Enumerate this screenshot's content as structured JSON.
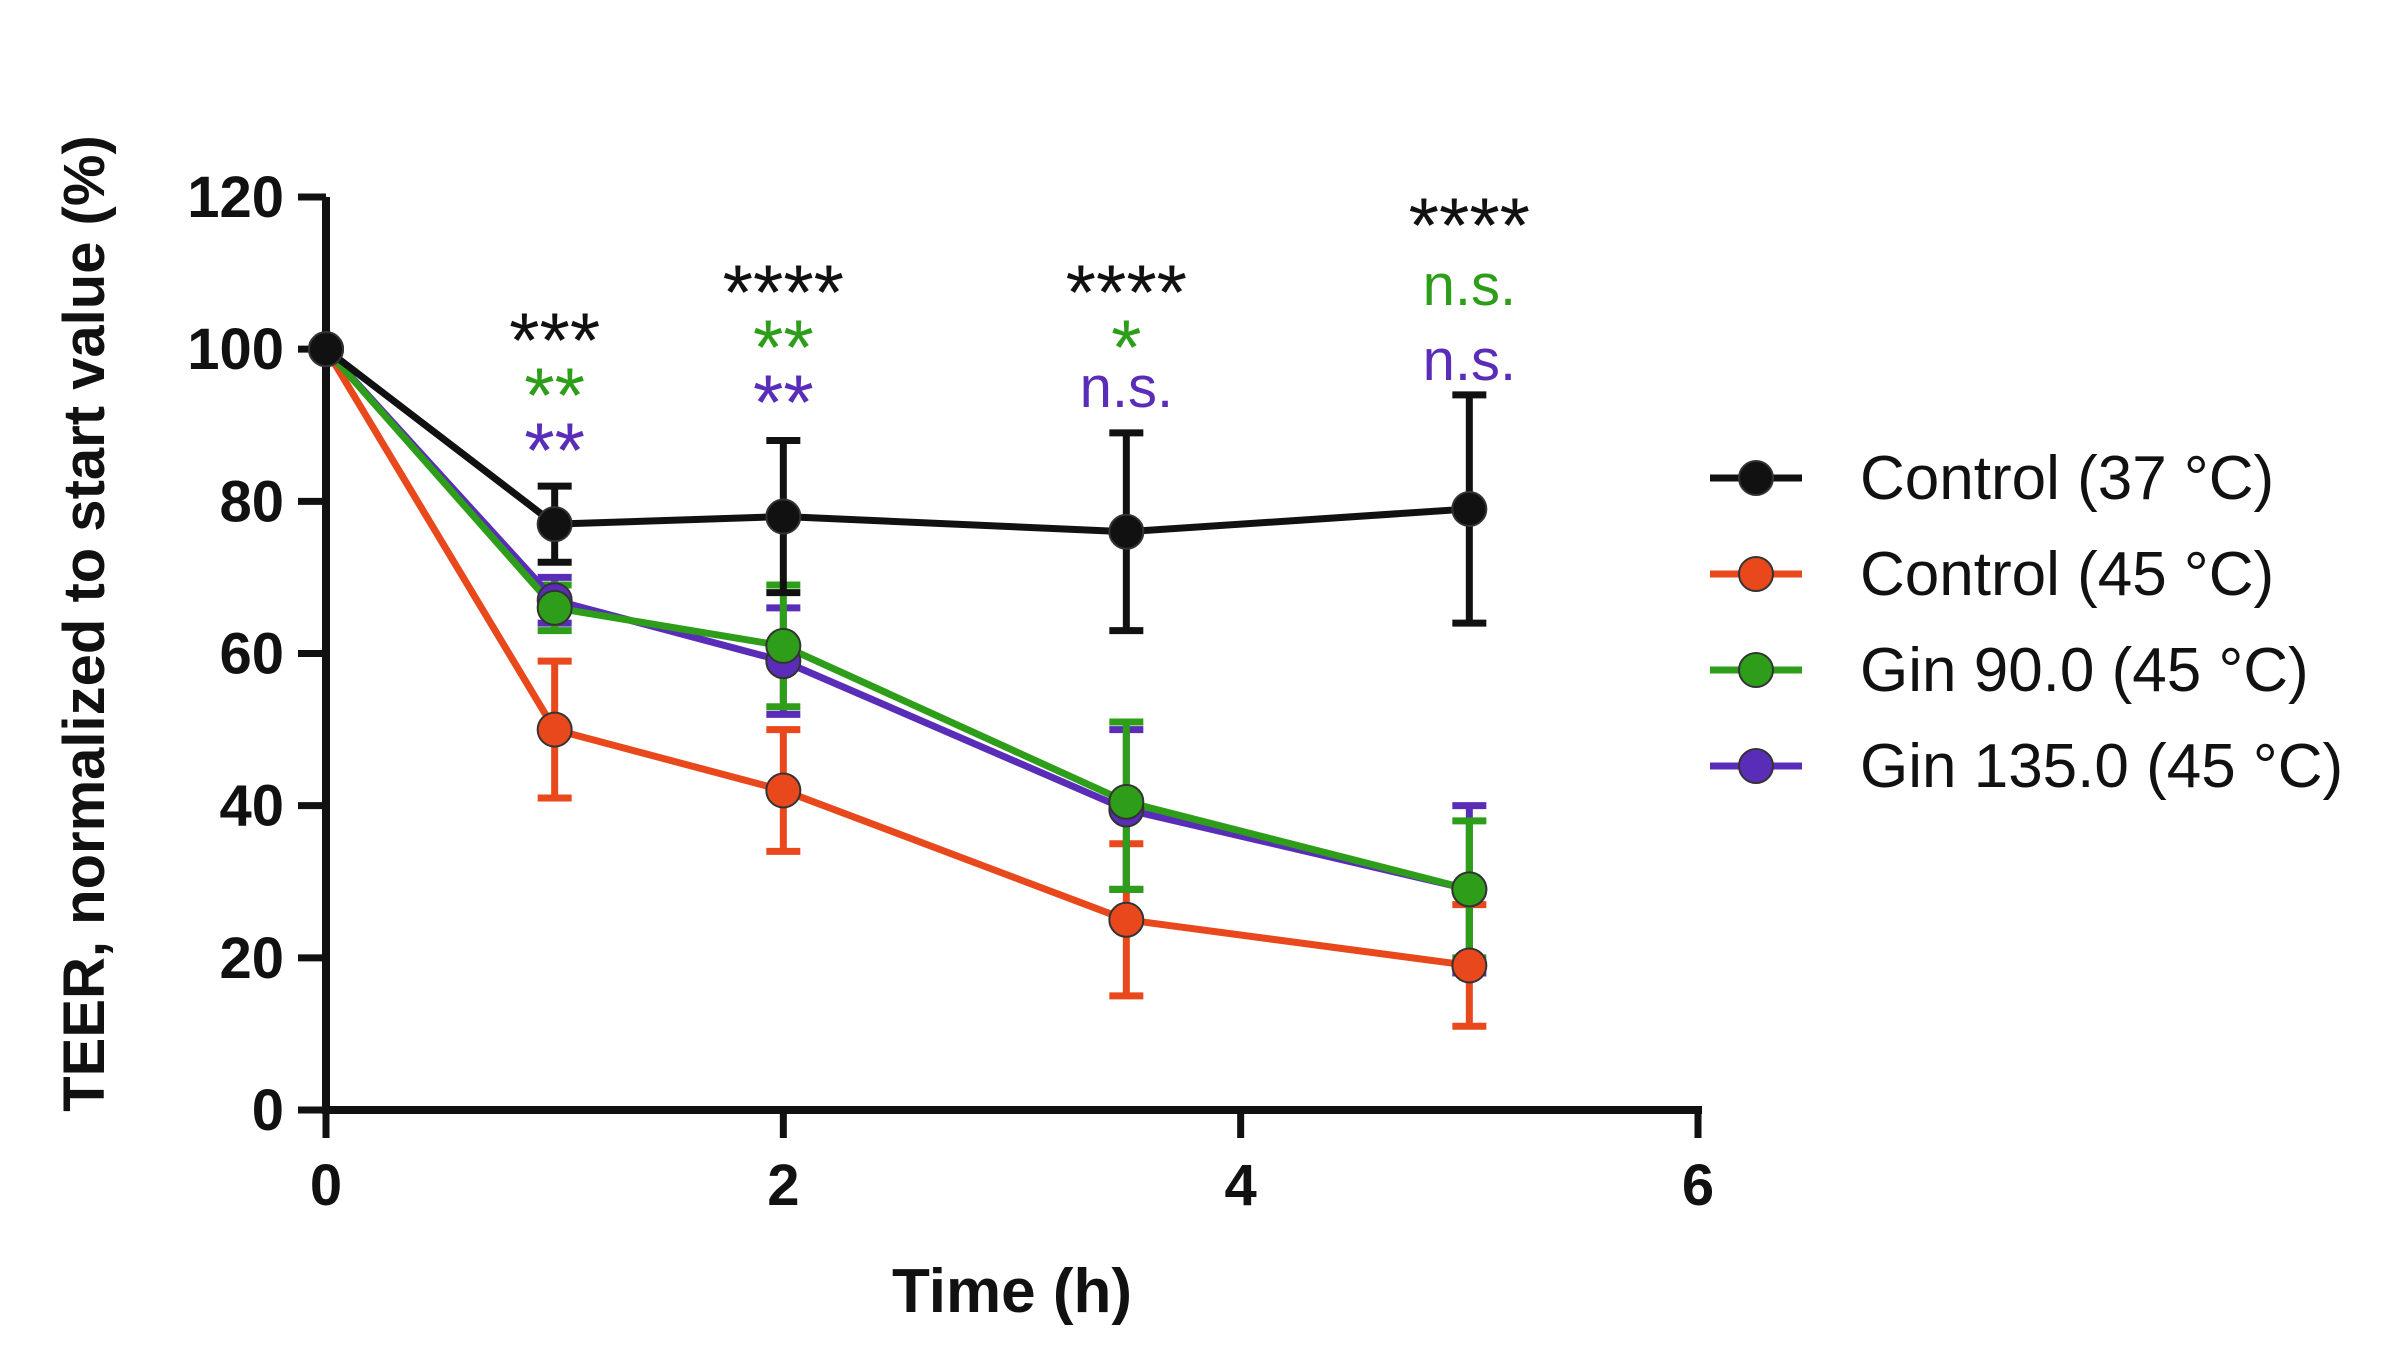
{
  "chart_data": {
    "type": "line",
    "title": "",
    "xlabel": "Time (h)",
    "ylabel": "TEER, normalized to start value (%)",
    "xlim": [
      0,
      6
    ],
    "ylim": [
      0,
      120
    ],
    "xticks": [
      "0",
      "2",
      "4",
      "6"
    ],
    "xtick_values": [
      0,
      2,
      4,
      6
    ],
    "yticks": [
      "0",
      "20",
      "40",
      "60",
      "80",
      "100",
      "120"
    ],
    "ytick_values": [
      0,
      20,
      40,
      60,
      80,
      100,
      120
    ],
    "grid": false,
    "legend_position": "right",
    "series": [
      {
        "name": "Control (37 °C)",
        "color": "#111111",
        "x": [
          0,
          1,
          2,
          3.5,
          5
        ],
        "y": [
          100,
          77,
          78,
          76,
          79
        ],
        "err_hi": [
          null,
          82,
          88,
          89,
          94
        ],
        "err_lo": [
          null,
          72,
          68,
          63,
          64
        ]
      },
      {
        "name": "Control (45 °C)",
        "color": "#e8481c",
        "x": [
          0,
          1,
          2,
          3.5,
          5
        ],
        "y": [
          100,
          50,
          42,
          25,
          19
        ],
        "err_hi": [
          null,
          59,
          50,
          35,
          27
        ],
        "err_lo": [
          null,
          41,
          34,
          15,
          11
        ]
      },
      {
        "name": "Gin 90.0 (45 °C)",
        "color": "#2e9e1a",
        "x": [
          0,
          1,
          2,
          3.5,
          5
        ],
        "y": [
          100,
          66,
          61,
          40.5,
          29
        ],
        "err_hi": [
          null,
          69,
          69,
          51,
          38
        ],
        "err_lo": [
          null,
          63,
          53,
          29,
          20
        ]
      },
      {
        "name": "Gin 135.0 (45 °C)",
        "color": "#5a2db8",
        "x": [
          0,
          1,
          2,
          3.5,
          5
        ],
        "y": [
          100,
          67,
          59,
          39.5,
          29
        ],
        "err_hi": [
          null,
          70,
          66,
          50,
          40
        ],
        "err_lo": [
          null,
          64,
          52,
          29,
          18
        ]
      }
    ],
    "annotations": [
      {
        "x": 1,
        "lines": [
          {
            "text": "***",
            "color": "#111111"
          },
          {
            "text": "**",
            "color": "#2e9e1a"
          },
          {
            "text": "**",
            "color": "#5a2db8"
          }
        ]
      },
      {
        "x": 2,
        "lines": [
          {
            "text": "****",
            "color": "#111111"
          },
          {
            "text": "**",
            "color": "#2e9e1a"
          },
          {
            "text": "**",
            "color": "#5a2db8"
          }
        ]
      },
      {
        "x": 3.5,
        "lines": [
          {
            "text": "****",
            "color": "#111111"
          },
          {
            "text": "*",
            "color": "#2e9e1a"
          },
          {
            "text": "n.s.",
            "color": "#5a2db8"
          }
        ]
      },
      {
        "x": 5,
        "lines": [
          {
            "text": "****",
            "color": "#111111"
          },
          {
            "text": "n.s.",
            "color": "#2e9e1a"
          },
          {
            "text": "n.s.",
            "color": "#5a2db8"
          }
        ]
      }
    ]
  }
}
